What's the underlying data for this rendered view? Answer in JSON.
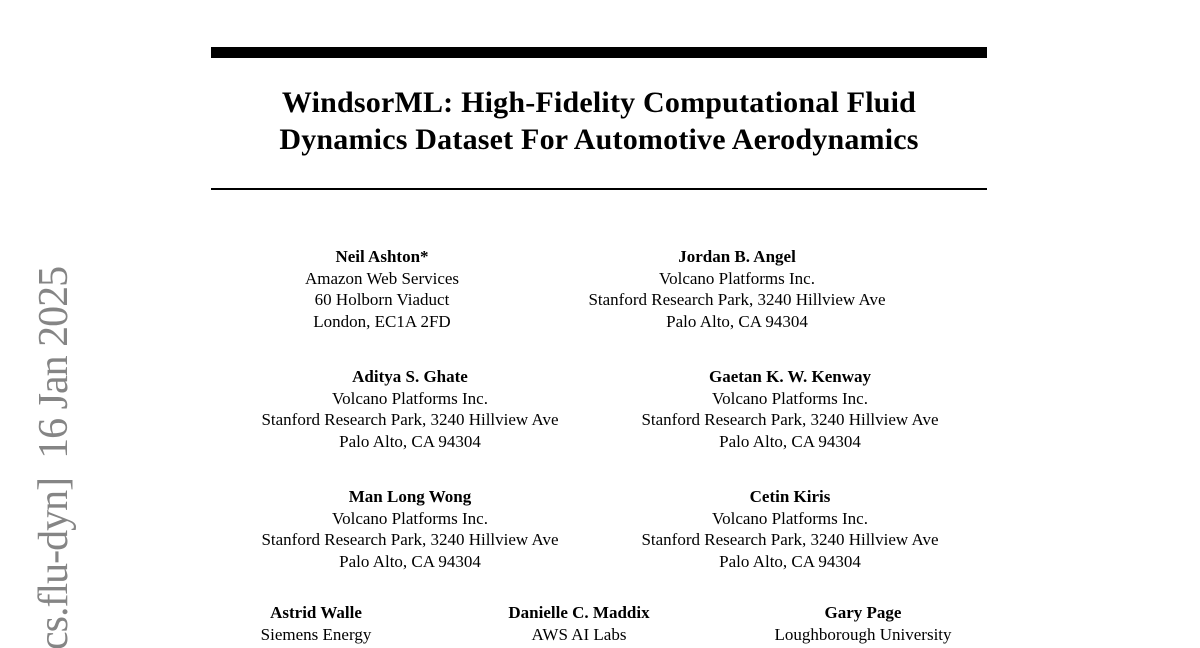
{
  "watermark": {
    "text": "cs.flu-dyn]  16 Jan 2025",
    "color": "#858585"
  },
  "header": {
    "title_line1": "WindsorML: High-Fidelity Computational Fluid",
    "title_line2": "Dynamics Dataset For Automotive Aerodynamics"
  },
  "authors": [
    {
      "name": "Neil Ashton*",
      "affiliation": [
        "Amazon Web Services",
        "60 Holborn Viaduct",
        "London, EC1A 2FD"
      ]
    },
    {
      "name": "Jordan B. Angel",
      "affiliation": [
        "Volcano Platforms Inc.",
        "Stanford Research Park, 3240 Hillview Ave",
        "Palo Alto, CA 94304"
      ]
    },
    {
      "name": "Aditya S. Ghate",
      "affiliation": [
        "Volcano Platforms Inc.",
        "Stanford Research Park, 3240 Hillview Ave",
        "Palo Alto, CA 94304"
      ]
    },
    {
      "name": "Gaetan K. W. Kenway",
      "affiliation": [
        "Volcano Platforms Inc.",
        "Stanford Research Park, 3240 Hillview Ave",
        "Palo Alto, CA 94304"
      ]
    },
    {
      "name": "Man Long Wong",
      "affiliation": [
        "Volcano Platforms Inc.",
        "Stanford Research Park, 3240 Hillview Ave",
        "Palo Alto, CA 94304"
      ]
    },
    {
      "name": "Cetin Kiris",
      "affiliation": [
        "Volcano Platforms Inc.",
        "Stanford Research Park, 3240 Hillview Ave",
        "Palo Alto, CA 94304"
      ]
    },
    {
      "name": "Astrid Walle",
      "affiliation": [
        "Siemens Energy"
      ]
    },
    {
      "name": "Danielle C. Maddix",
      "affiliation": [
        "AWS AI Labs"
      ]
    },
    {
      "name": "Gary Page",
      "affiliation": [
        "Loughborough University"
      ]
    }
  ]
}
